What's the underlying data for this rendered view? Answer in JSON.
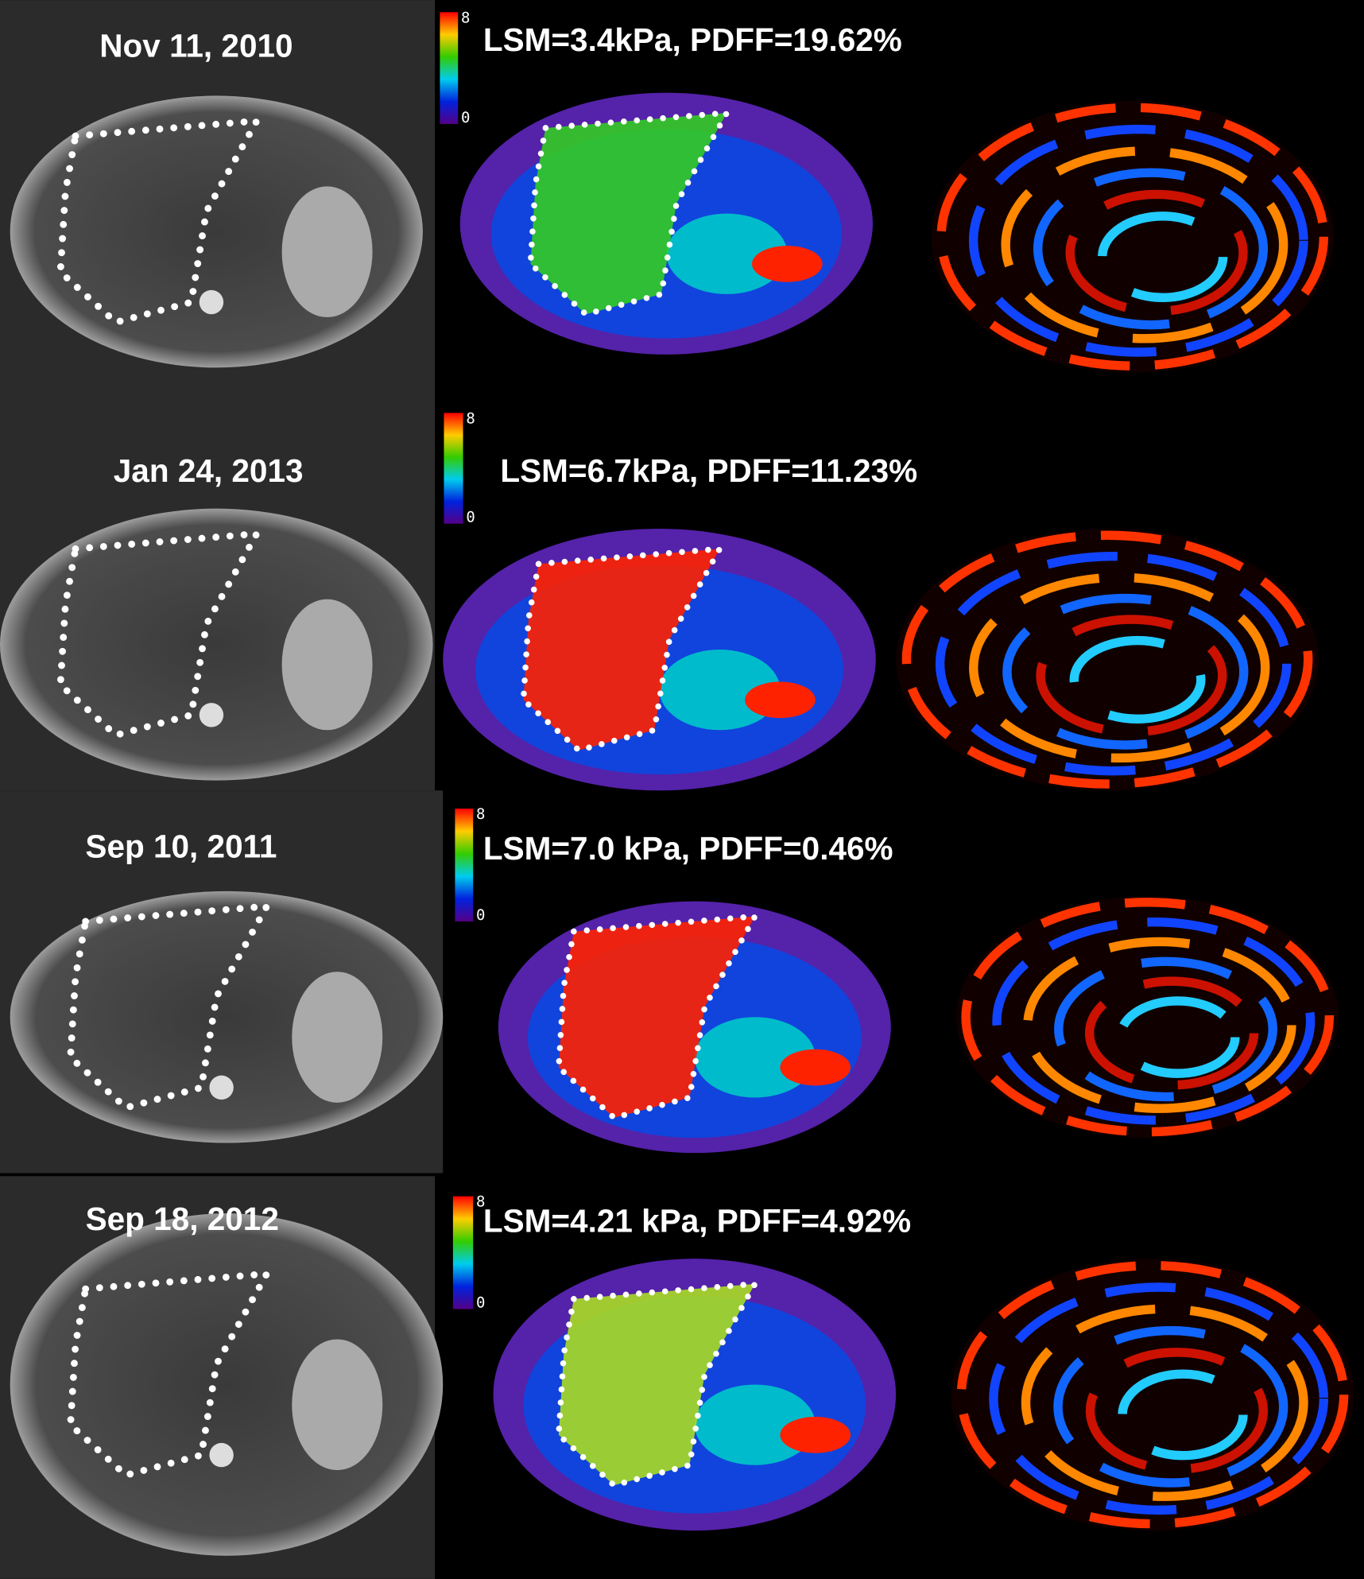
{
  "rows": [
    {
      "date": "Nov 11, 2010",
      "measurement": "LSM=3.4kPa, PDFF=19.62%",
      "colorbar": {
        "max": 8,
        "min": 0
      }
    },
    {
      "date": "Jan 24, 2013",
      "measurement": "LSM=6.7kPa, PDFF=11.23%",
      "colorbar": {
        "max": 8,
        "min": 0
      }
    },
    {
      "date": "Sep 10, 2011",
      "measurement": "LSM=7.0 kPa, PDFF=0.46%",
      "colorbar": {
        "max": 8,
        "min": 0
      }
    },
    {
      "date": "Sep 18, 2012",
      "measurement": "LSM=4.21 kPa, PDFF=4.92%",
      "colorbar": {
        "max": 8,
        "min": 0
      }
    }
  ]
}
